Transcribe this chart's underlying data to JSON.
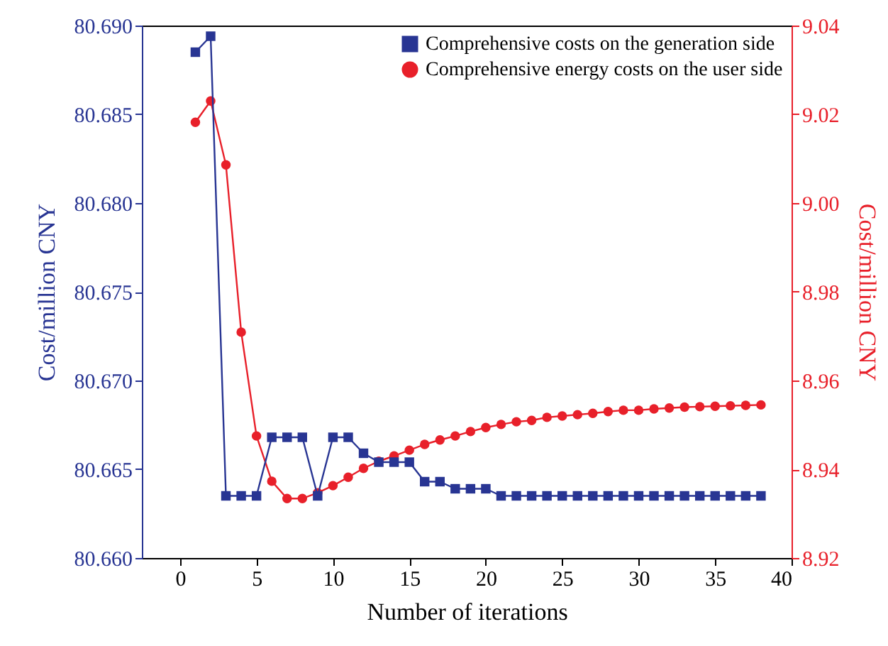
{
  "chart_data": {
    "type": "line",
    "xlabel": "Number of iterations",
    "ylabel": "Cost/million CNY",
    "y2label": "Cost/million CNY",
    "x": [
      1,
      2,
      3,
      4,
      5,
      6,
      7,
      8,
      9,
      10,
      11,
      12,
      13,
      14,
      15,
      16,
      17,
      18,
      19,
      20,
      21,
      22,
      23,
      24,
      25,
      26,
      27,
      28,
      29,
      30,
      31,
      32,
      33,
      34,
      35,
      36,
      37,
      38
    ],
    "series": [
      {
        "name": "Comprehensive costs on the generation side",
        "color": "#283593",
        "marker": "square",
        "values": [
          80.6885,
          80.6894,
          80.6635,
          80.6635,
          80.6635,
          80.6668,
          80.6668,
          80.6668,
          80.6635,
          80.6668,
          80.6668,
          80.6659,
          80.6654,
          80.6654,
          80.6654,
          80.6643,
          80.6643,
          80.6639,
          80.6639,
          80.6639,
          80.6635,
          80.6635,
          80.6635,
          80.6635,
          80.6635,
          80.6635,
          80.6635,
          80.6635,
          80.6635,
          80.6635,
          80.6635,
          80.6635,
          80.6635,
          80.6635,
          80.6635,
          80.6635,
          80.6635,
          80.6635
        ]
      },
      {
        "name": "Comprehensive energy costs on the user side",
        "color": "#e8202a",
        "marker": "circle",
        "axis": "y2",
        "values": [
          9.0182,
          9.023,
          9.0086,
          8.9709,
          8.9475,
          8.9373,
          8.9334,
          8.9334,
          8.9347,
          8.9363,
          8.9382,
          8.9402,
          8.9418,
          8.943,
          8.9443,
          8.9456,
          8.9466,
          8.9475,
          8.9485,
          8.9494,
          8.9501,
          8.9507,
          8.951,
          8.9517,
          8.952,
          8.9523,
          8.9526,
          8.953,
          8.9533,
          8.9533,
          8.9536,
          8.9538,
          8.954,
          8.9541,
          8.9542,
          8.9543,
          8.9544,
          8.9545
        ]
      }
    ],
    "xlim": [
      -2.5,
      40
    ],
    "xticks": [
      0,
      5,
      10,
      15,
      20,
      25,
      30,
      35,
      40
    ],
    "ylim": [
      80.66,
      80.69
    ],
    "yticks": [
      {
        "value": 80.66,
        "label": "80.660"
      },
      {
        "value": 80.665,
        "label": "80.665"
      },
      {
        "value": 80.67,
        "label": "80.670"
      },
      {
        "value": 80.675,
        "label": "80.675"
      },
      {
        "value": 80.68,
        "label": "80.680"
      },
      {
        "value": 80.685,
        "label": "80.685"
      },
      {
        "value": 80.69,
        "label": "80.690"
      }
    ],
    "y2lim": [
      8.92,
      9.04
    ],
    "y2ticks": [
      8.92,
      8.94,
      8.96,
      8.98,
      {
        "value": 9.0,
        "label": "9.00"
      },
      9.02,
      9.04
    ],
    "legend": "top right",
    "grid": false,
    "line_style": "solid"
  }
}
